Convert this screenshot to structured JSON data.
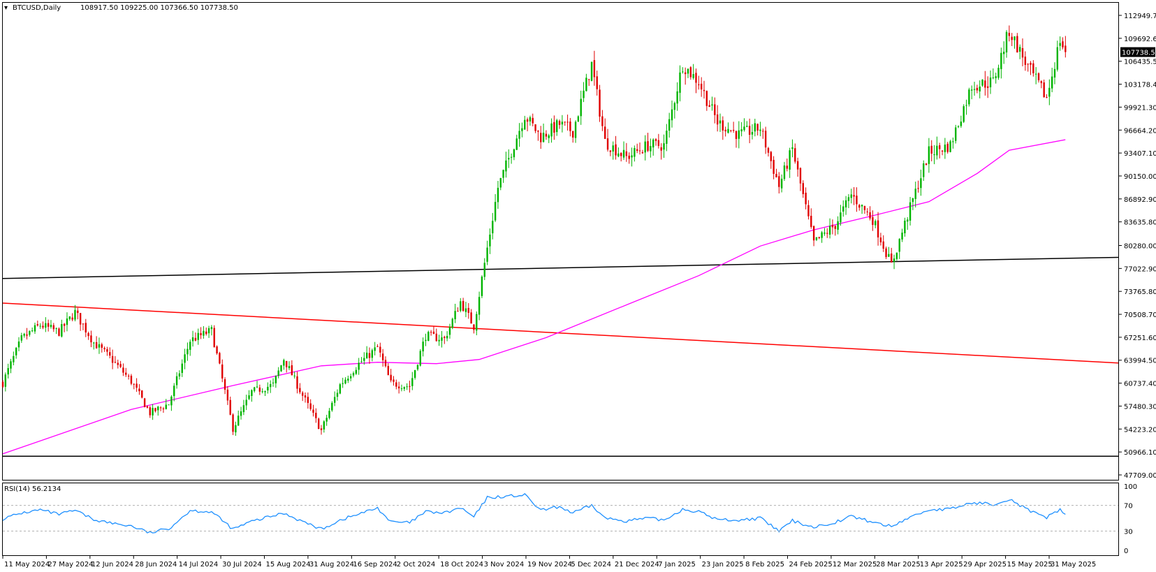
{
  "window": {
    "symbol_timeframe": "BTCUSD,Daily",
    "ohlc": "108917.50 109225.00 107366.50 107738.50"
  },
  "colors": {
    "bull": "#00b400",
    "bear": "#e00000",
    "ma": "#ff00ff",
    "support_line": "#000000",
    "resistance_line": "#ff0000",
    "rsi_line": "#1e90ff",
    "price_tag_bg": "#000000",
    "price_tag_fg": "#ffffff"
  },
  "price_axis": {
    "ticks": [
      "112949.70",
      "109692.60",
      "106435.50",
      "103178.40",
      "99921.30",
      "96664.20",
      "93407.10",
      "90150.00",
      "86892.90",
      "83635.80",
      "80280.00",
      "77022.90",
      "73765.80",
      "70508.70",
      "67251.60",
      "63994.50",
      "60737.40",
      "57480.30",
      "54223.20",
      "50966.10",
      "47709.00"
    ],
    "current_price_label": "107738.50"
  },
  "rsi_panel": {
    "label": "RSI(14) 56.2134",
    "ticks": [
      "100",
      "70",
      "30",
      "0"
    ],
    "levels": [
      70,
      30
    ]
  },
  "date_axis": {
    "ticks": [
      "11 May 2024",
      "27 May 2024",
      "12 Jun 2024",
      "28 Jun 2024",
      "14 Jul 2024",
      "30 Jul 2024",
      "15 Aug 2024",
      "31 Aug 2024",
      "16 Sep 2024",
      "2 Oct 2024",
      "18 Oct 2024",
      "3 Nov 2024",
      "19 Nov 2024",
      "5 Dec 2024",
      "21 Dec 2024",
      "7 Jan 2025",
      "23 Jan 2025",
      "8 Feb 2025",
      "24 Feb 2025",
      "12 Mar 2025",
      "28 Mar 2025",
      "13 Apr 2025",
      "29 Apr 2025",
      "15 May 2025",
      "31 May 2025"
    ]
  },
  "chart_data": {
    "type": "candlestick",
    "x_range": [
      "2024-05-11",
      "2025-06-08"
    ],
    "ylim": [
      47709.0,
      112949.7
    ],
    "close_path": [
      [
        "2024-05-11",
        60800
      ],
      [
        "2024-05-18",
        67000
      ],
      [
        "2024-05-25",
        69000
      ],
      [
        "2024-06-01",
        68000
      ],
      [
        "2024-06-07",
        70800
      ],
      [
        "2024-06-14",
        66500
      ],
      [
        "2024-06-21",
        64000
      ],
      [
        "2024-06-28",
        61000
      ],
      [
        "2024-07-05",
        56500
      ],
      [
        "2024-07-12",
        57800
      ],
      [
        "2024-07-20",
        66800
      ],
      [
        "2024-07-28",
        68200
      ],
      [
        "2024-08-05",
        54300
      ],
      [
        "2024-08-12",
        59500
      ],
      [
        "2024-08-20",
        60500
      ],
      [
        "2024-08-24",
        64200
      ],
      [
        "2024-08-31",
        59000
      ],
      [
        "2024-09-07",
        54000
      ],
      [
        "2024-09-14",
        60500
      ],
      [
        "2024-09-21",
        63500
      ],
      [
        "2024-09-28",
        65800
      ],
      [
        "2024-10-03",
        60700
      ],
      [
        "2024-10-10",
        60300
      ],
      [
        "2024-10-16",
        67500
      ],
      [
        "2024-10-23",
        67000
      ],
      [
        "2024-10-29",
        72300
      ],
      [
        "2024-11-03",
        68800
      ],
      [
        "2024-11-06",
        75600
      ],
      [
        "2024-11-12",
        88500
      ],
      [
        "2024-11-22",
        98800
      ],
      [
        "2024-11-28",
        95700
      ],
      [
        "2024-12-05",
        97500
      ],
      [
        "2024-12-10",
        96500
      ],
      [
        "2024-12-17",
        106000
      ],
      [
        "2024-12-22",
        95000
      ],
      [
        "2024-12-30",
        92800
      ],
      [
        "2025-01-07",
        94500
      ],
      [
        "2025-01-13",
        94500
      ],
      [
        "2025-01-20",
        106000
      ],
      [
        "2025-01-26",
        103500
      ],
      [
        "2025-02-02",
        97800
      ],
      [
        "2025-02-10",
        96000
      ],
      [
        "2025-02-18",
        97000
      ],
      [
        "2025-02-25",
        88700
      ],
      [
        "2025-03-02",
        94000
      ],
      [
        "2025-03-10",
        80600
      ],
      [
        "2025-03-18",
        83200
      ],
      [
        "2025-03-24",
        87500
      ],
      [
        "2025-04-01",
        84000
      ],
      [
        "2025-04-08",
        77500
      ],
      [
        "2025-04-14",
        84500
      ],
      [
        "2025-04-22",
        93500
      ],
      [
        "2025-04-30",
        94500
      ],
      [
        "2025-05-08",
        103000
      ],
      [
        "2025-05-16",
        103500
      ],
      [
        "2025-05-22",
        110800
      ],
      [
        "2025-05-29",
        105600
      ],
      [
        "2025-06-05",
        101200
      ],
      [
        "2025-06-07",
        104500
      ],
      [
        "2025-06-10",
        109500
      ],
      [
        "2025-06-12",
        107738.5
      ]
    ],
    "ma_path": [
      [
        "2024-05-11",
        50700
      ],
      [
        "2024-06-28",
        57000
      ],
      [
        "2024-08-05",
        60400
      ],
      [
        "2024-09-07",
        63200
      ],
      [
        "2024-09-28",
        63700
      ],
      [
        "2024-10-20",
        63500
      ],
      [
        "2024-11-05",
        64100
      ],
      [
        "2024-11-30",
        67200
      ],
      [
        "2024-12-31",
        72000
      ],
      [
        "2025-01-26",
        76000
      ],
      [
        "2025-02-18",
        80200
      ],
      [
        "2025-03-10",
        82500
      ],
      [
        "2025-04-01",
        84500
      ],
      [
        "2025-04-22",
        86500
      ],
      [
        "2025-05-10",
        90500
      ],
      [
        "2025-05-22",
        93800
      ],
      [
        "2025-06-12",
        95300
      ]
    ],
    "trendlines": [
      {
        "color_key": "support_line",
        "from": [
          "2024-05-11",
          75600
        ],
        "to": [
          "2025-06-12",
          78600
        ]
      },
      {
        "color_key": "resistance_line",
        "from": [
          "2024-05-11",
          72100
        ],
        "to": [
          "2025-06-12",
          63600
        ]
      },
      {
        "color_key": "support_line",
        "from": [
          "2024-05-11",
          50366
        ],
        "to": [
          "2025-06-12",
          50366
        ]
      }
    ],
    "rsi_path": [
      [
        "2024-05-11",
        49
      ],
      [
        "2024-05-18",
        58
      ],
      [
        "2024-05-25",
        63
      ],
      [
        "2024-06-01",
        56
      ],
      [
        "2024-06-07",
        62
      ],
      [
        "2024-06-14",
        48
      ],
      [
        "2024-06-21",
        42
      ],
      [
        "2024-06-28",
        38
      ],
      [
        "2024-07-05",
        27
      ],
      [
        "2024-07-12",
        34
      ],
      [
        "2024-07-20",
        62
      ],
      [
        "2024-07-28",
        60
      ],
      [
        "2024-08-05",
        33
      ],
      [
        "2024-08-12",
        45
      ],
      [
        "2024-08-24",
        58
      ],
      [
        "2024-08-31",
        45
      ],
      [
        "2024-09-07",
        33
      ],
      [
        "2024-09-14",
        47
      ],
      [
        "2024-09-28",
        66
      ],
      [
        "2024-10-03",
        44
      ],
      [
        "2024-10-10",
        43
      ],
      [
        "2024-10-16",
        60
      ],
      [
        "2024-10-23",
        58
      ],
      [
        "2024-10-29",
        66
      ],
      [
        "2024-11-03",
        52
      ],
      [
        "2024-11-08",
        82
      ],
      [
        "2024-11-22",
        86
      ],
      [
        "2024-11-28",
        62
      ],
      [
        "2024-12-05",
        68
      ],
      [
        "2024-12-10",
        58
      ],
      [
        "2024-12-17",
        70
      ],
      [
        "2024-12-22",
        50
      ],
      [
        "2024-12-30",
        46
      ],
      [
        "2025-01-07",
        50
      ],
      [
        "2025-01-13",
        47
      ],
      [
        "2025-01-20",
        64
      ],
      [
        "2025-01-26",
        60
      ],
      [
        "2025-02-02",
        48
      ],
      [
        "2025-02-10",
        47
      ],
      [
        "2025-02-18",
        50
      ],
      [
        "2025-02-25",
        30
      ],
      [
        "2025-03-02",
        46
      ],
      [
        "2025-03-10",
        36
      ],
      [
        "2025-03-18",
        44
      ],
      [
        "2025-03-24",
        53
      ],
      [
        "2025-04-01",
        44
      ],
      [
        "2025-04-08",
        37
      ],
      [
        "2025-04-14",
        50
      ],
      [
        "2025-04-22",
        63
      ],
      [
        "2025-04-30",
        64
      ],
      [
        "2025-05-08",
        74
      ],
      [
        "2025-05-16",
        72
      ],
      [
        "2025-05-22",
        80
      ],
      [
        "2025-05-29",
        63
      ],
      [
        "2025-06-05",
        49
      ],
      [
        "2025-06-07",
        59
      ],
      [
        "2025-06-10",
        63
      ],
      [
        "2025-06-12",
        56.2134
      ]
    ]
  }
}
